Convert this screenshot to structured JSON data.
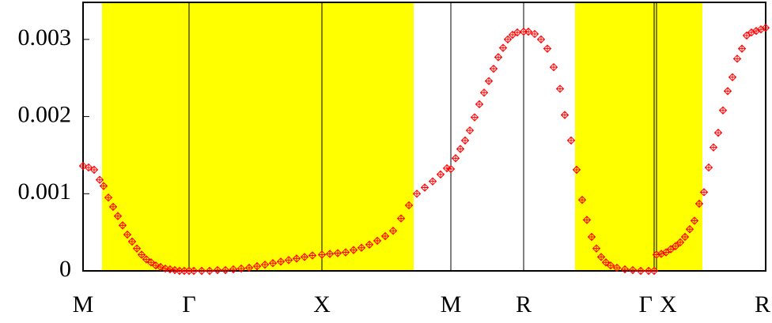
{
  "chart_data": {
    "type": "scatter",
    "xlim": [
      0,
      8.63
    ],
    "ylim": [
      0,
      0.00348
    ],
    "yticks": [
      0,
      0.001,
      0.002,
      0.003
    ],
    "xticks": [
      {
        "value": 0,
        "label": "M"
      },
      {
        "value": 1.34,
        "label": "Γ"
      },
      {
        "value": 3.02,
        "label": "X"
      },
      {
        "value": 4.65,
        "label": "M"
      },
      {
        "value": 5.57,
        "label": "R"
      },
      {
        "value": 7.22,
        "label": "Γ"
      },
      {
        "value": 7.25,
        "label": "X"
      },
      {
        "value": 8.63,
        "label": "R"
      }
    ],
    "shaded_regions": [
      {
        "x_range": [
          0.24,
          4.18
        ],
        "color": "#ffff00"
      },
      {
        "x_range": [
          6.22,
          7.83
        ],
        "color": "#ffff00"
      }
    ],
    "series": [
      {
        "color": "#ff0000",
        "x": [
          0.0,
          0.07,
          0.14,
          0.21,
          0.26,
          0.32,
          0.38,
          0.44,
          0.5,
          0.56,
          0.62,
          0.68,
          0.74,
          0.8,
          0.86,
          0.92,
          0.98,
          1.04,
          1.1,
          1.16,
          1.22,
          1.28,
          1.34,
          1.4,
          1.5,
          1.6,
          1.7,
          1.8,
          1.9,
          2.0,
          2.1,
          2.2,
          2.3,
          2.4,
          2.5,
          2.6,
          2.7,
          2.8,
          2.9,
          3.02,
          3.12,
          3.22,
          3.32,
          3.42,
          3.52,
          3.62,
          3.72,
          3.82,
          3.92,
          4.02,
          4.12,
          4.22,
          4.32,
          4.42,
          4.52,
          4.6,
          4.65,
          4.71,
          4.77,
          4.83,
          4.89,
          4.95,
          5.01,
          5.07,
          5.13,
          5.19,
          5.25,
          5.31,
          5.37,
          5.43,
          5.49,
          5.57,
          5.63,
          5.71,
          5.79,
          5.87,
          5.95,
          6.03,
          6.09,
          6.17,
          6.24,
          6.31,
          6.37,
          6.43,
          6.49,
          6.55,
          6.61,
          6.67,
          6.75,
          6.85,
          6.95,
          7.05,
          7.15,
          7.22,
          7.25,
          7.31,
          7.37,
          7.43,
          7.49,
          7.55,
          7.61,
          7.67,
          7.73,
          7.79,
          7.85,
          7.91,
          7.97,
          8.03,
          8.09,
          8.15,
          8.21,
          8.27,
          8.33,
          8.39,
          8.45,
          8.51,
          8.57,
          8.63
        ],
        "values": [
          0.00136,
          0.00134,
          0.00131,
          0.00118,
          0.0011,
          0.00095,
          0.00083,
          0.00071,
          0.00059,
          0.00047,
          0.00038,
          0.00029,
          0.00021,
          0.00015,
          0.00011,
          7e-05,
          5e-05,
          3e-05,
          2e-05,
          1e-05,
          0,
          0,
          0,
          0,
          0,
          0,
          1e-05,
          1e-05,
          2e-05,
          3e-05,
          4e-05,
          6e-05,
          8e-05,
          0.0001,
          0.00012,
          0.00014,
          0.00016,
          0.00018,
          0.0002,
          0.00021,
          0.00022,
          0.00023,
          0.00024,
          0.00027,
          0.0003,
          0.00034,
          0.00039,
          0.00045,
          0.00052,
          0.00068,
          0.00085,
          0.001,
          0.00108,
          0.00116,
          0.00125,
          0.00133,
          0.00132,
          0.00146,
          0.00158,
          0.00169,
          0.00182,
          0.00199,
          0.00216,
          0.00231,
          0.00246,
          0.00262,
          0.00277,
          0.00289,
          0.003,
          0.00306,
          0.00309,
          0.0031,
          0.0031,
          0.00307,
          0.003,
          0.00288,
          0.00264,
          0.00236,
          0.00202,
          0.00169,
          0.00131,
          0.00092,
          0.00066,
          0.00044,
          0.00029,
          0.00018,
          0.00011,
          7e-05,
          4e-05,
          2e-05,
          1e-05,
          0,
          0,
          0,
          0.00021,
          0.00022,
          0.00024,
          0.00028,
          0.00032,
          0.00037,
          0.00044,
          0.00054,
          0.00065,
          0.00087,
          0.00102,
          0.00134,
          0.0016,
          0.00179,
          0.00208,
          0.00233,
          0.00251,
          0.00275,
          0.00288,
          0.00305,
          0.00309,
          0.00311,
          0.00313,
          0.00315
        ]
      }
    ]
  }
}
